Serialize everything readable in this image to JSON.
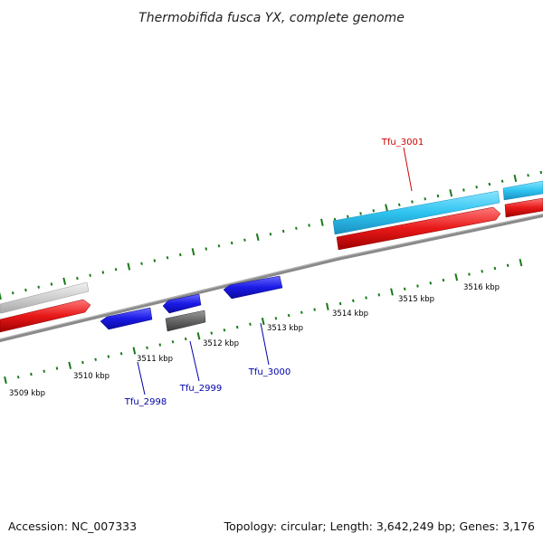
{
  "title": "Thermobifida fusca YX, complete genome",
  "footer": {
    "accession": "Accession: NC_007333",
    "stats": "Topology: circular; Length: 3,642,249 bp; Genes: 3,176"
  },
  "colors": {
    "backbone": "#8a8a8a",
    "tick": "#1a7a1a",
    "forward_cds": "#2ec4f0",
    "reverse_cds": "#2020e0",
    "rna_red": "#e81818",
    "pseudo_gray": "#6a6a6a",
    "light_gray": "#cfcfcf",
    "label_forward": "#cc0000",
    "label_reverse": "#0000aa"
  },
  "scale_labels": [
    "3509 kbp",
    "3510 kbp",
    "3511 kbp",
    "3512 kbp",
    "3513 kbp",
    "3514 kbp",
    "3515 kbp",
    "3516 kbp"
  ],
  "gene_labels": [
    "Tfu_3001",
    "Tfu_2998",
    "Tfu_2999",
    "Tfu_3000"
  ]
}
